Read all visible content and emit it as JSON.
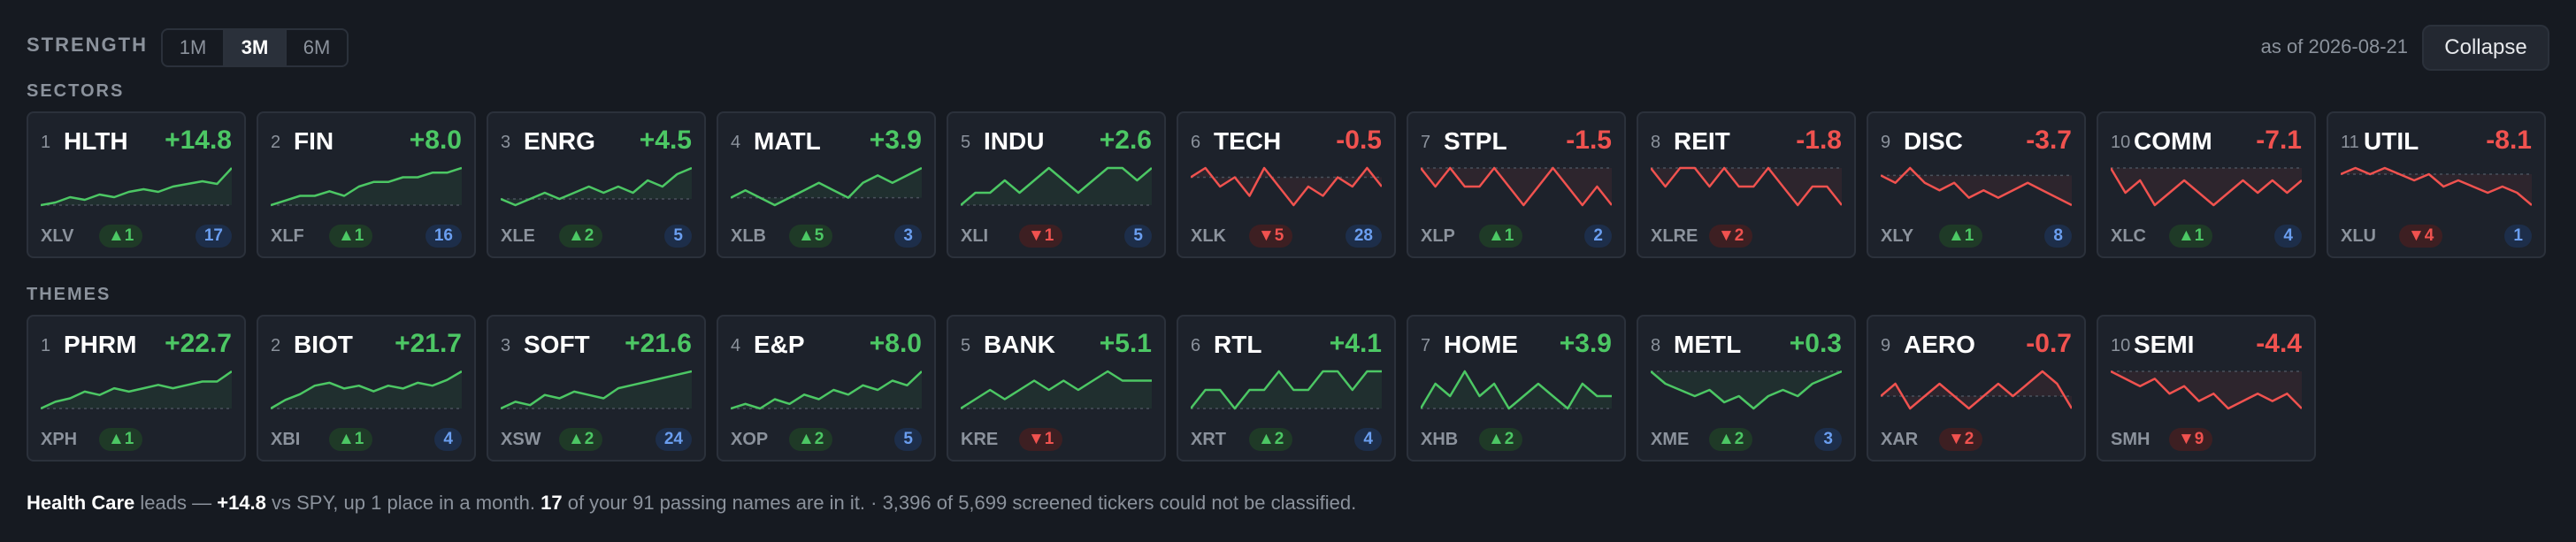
{
  "header": {
    "title": "STRENGTH",
    "tabs": [
      "1M",
      "3M",
      "6M"
    ],
    "active_tab": 1,
    "as_of": "as of 2026-08-21",
    "button": "Collapse"
  },
  "groups": [
    {
      "label": "SECTORS",
      "cards": [
        {
          "rank": "1",
          "ticker": "HLTH",
          "value": "+14.8",
          "etf": "XLV",
          "move": "▲1",
          "count": "17",
          "spark": [
            0,
            1,
            3,
            2,
            4,
            3,
            5,
            6,
            5,
            7,
            8,
            9,
            8,
            14
          ]
        },
        {
          "rank": "2",
          "ticker": "FIN",
          "value": "+8.0",
          "etf": "XLF",
          "move": "▲1",
          "count": "16",
          "spark": [
            0,
            1,
            2,
            2,
            3,
            2,
            4,
            5,
            5,
            6,
            6,
            7,
            7,
            8
          ]
        },
        {
          "rank": "3",
          "ticker": "ENRG",
          "value": "+4.5",
          "etf": "XLE",
          "move": "▲2",
          "count": "5",
          "spark": [
            0,
            -1,
            0,
            1,
            0,
            1,
            2,
            1,
            2,
            1,
            3,
            2,
            4,
            5
          ]
        },
        {
          "rank": "4",
          "ticker": "MATL",
          "value": "+3.9",
          "etf": "XLB",
          "move": "▲5",
          "count": "3",
          "spark": [
            0,
            1,
            0,
            -1,
            0,
            1,
            2,
            1,
            0,
            2,
            3,
            2,
            3,
            4
          ]
        },
        {
          "rank": "5",
          "ticker": "INDU",
          "value": "+2.6",
          "etf": "XLI",
          "move": "▼1",
          "count": "5",
          "spark": [
            0,
            1,
            1,
            2,
            1,
            2,
            3,
            2,
            1,
            2,
            3,
            3,
            2,
            3
          ]
        },
        {
          "rank": "6",
          "ticker": "TECH",
          "value": "-0.5",
          "etf": "XLK",
          "move": "▼5",
          "count": "28",
          "spark": [
            0,
            1,
            -1,
            0,
            -2,
            1,
            -1,
            -3,
            -1,
            -2,
            0,
            -1,
            1,
            -1
          ]
        },
        {
          "rank": "7",
          "ticker": "STPL",
          "value": "-1.5",
          "etf": "XLP",
          "move": "▲1",
          "count": "2",
          "spark": [
            0,
            -1,
            0,
            -1,
            -1,
            0,
            -1,
            -2,
            -1,
            0,
            -1,
            -2,
            -1,
            -2
          ]
        },
        {
          "rank": "8",
          "ticker": "REIT",
          "value": "-1.8",
          "etf": "XLRE",
          "move": "▼2",
          "spark": [
            0,
            -1,
            0,
            0,
            -1,
            0,
            -1,
            -1,
            0,
            -1,
            -2,
            -1,
            -1,
            -2
          ]
        },
        {
          "rank": "9",
          "ticker": "DISC",
          "value": "-3.7",
          "etf": "XLY",
          "move": "▲1",
          "count": "8",
          "spark": [
            0,
            -1,
            1,
            -1,
            -2,
            -1,
            -3,
            -2,
            -3,
            -2,
            -1,
            -2,
            -3,
            -4
          ]
        },
        {
          "rank": "10",
          "ticker": "COMM",
          "value": "-7.1",
          "etf": "XLC",
          "move": "▲1",
          "count": "4",
          "spark": [
            0,
            -2,
            -1,
            -3,
            -2,
            -1,
            -2,
            -3,
            -2,
            -1,
            -2,
            -1,
            -2,
            -1
          ]
        },
        {
          "rank": "11",
          "ticker": "UTIL",
          "value": "-8.1",
          "etf": "XLU",
          "move": "▼4",
          "count": "1",
          "spark": [
            0,
            1,
            0,
            1,
            0,
            -1,
            0,
            -2,
            -1,
            -2,
            -3,
            -2,
            -3,
            -5
          ]
        }
      ]
    },
    {
      "label": "THEMES",
      "cards": [
        {
          "rank": "1",
          "ticker": "PHRM",
          "value": "+22.7",
          "etf": "XPH",
          "move": "▲1",
          "spark": [
            0,
            2,
            3,
            5,
            4,
            6,
            5,
            6,
            7,
            6,
            7,
            8,
            8,
            11
          ]
        },
        {
          "rank": "2",
          "ticker": "BIOT",
          "value": "+21.7",
          "etf": "XBI",
          "move": "▲1",
          "count": "4",
          "spark": [
            0,
            3,
            5,
            8,
            9,
            7,
            8,
            6,
            8,
            7,
            9,
            8,
            10,
            13
          ]
        },
        {
          "rank": "3",
          "ticker": "SOFT",
          "value": "+21.6",
          "etf": "XSW",
          "move": "▲2",
          "count": "24",
          "spark": [
            0,
            2,
            1,
            4,
            3,
            5,
            4,
            3,
            6,
            7,
            8,
            9,
            10,
            11
          ]
        },
        {
          "rank": "4",
          "ticker": "E&P",
          "value": "+8.0",
          "etf": "XOP",
          "move": "▲2",
          "count": "5",
          "spark": [
            0,
            1,
            0,
            2,
            1,
            3,
            2,
            4,
            3,
            5,
            4,
            6,
            5,
            8
          ]
        },
        {
          "rank": "5",
          "ticker": "BANK",
          "value": "+5.1",
          "etf": "KRE",
          "move": "▼1",
          "spark": [
            0,
            1,
            2,
            1,
            2,
            3,
            2,
            3,
            2,
            3,
            4,
            3,
            3,
            3
          ]
        },
        {
          "rank": "6",
          "ticker": "RTL",
          "value": "+4.1",
          "etf": "XRT",
          "move": "▲2",
          "count": "4",
          "spark": [
            0,
            1,
            1,
            0,
            1,
            1,
            2,
            1,
            1,
            2,
            2,
            1,
            2,
            2
          ]
        },
        {
          "rank": "7",
          "ticker": "HOME",
          "value": "+3.9",
          "etf": "XHB",
          "move": "▲2",
          "spark": [
            0,
            2,
            1,
            3,
            1,
            2,
            0,
            1,
            2,
            1,
            0,
            2,
            1,
            1
          ]
        },
        {
          "rank": "8",
          "ticker": "METL",
          "value": "+0.3",
          "etf": "XME",
          "move": "▲2",
          "count": "3",
          "spark": [
            0,
            -2,
            -3,
            -4,
            -3,
            -5,
            -4,
            -6,
            -4,
            -3,
            -4,
            -2,
            -1,
            0
          ]
        },
        {
          "rank": "9",
          "ticker": "AERO",
          "value": "-0.7",
          "etf": "XAR",
          "move": "▼2",
          "spark": [
            0,
            1,
            -1,
            0,
            1,
            0,
            -1,
            0,
            1,
            0,
            1,
            2,
            1,
            -1
          ]
        },
        {
          "rank": "10",
          "ticker": "SEMI",
          "value": "-4.4",
          "etf": "SMH",
          "move": "▼9",
          "spark": [
            0,
            -1,
            -2,
            -1,
            -3,
            -2,
            -4,
            -3,
            -5,
            -4,
            -3,
            -4,
            -3,
            -5
          ]
        }
      ]
    }
  ],
  "footer": [
    {
      "text": "Health Care",
      "bold": true
    },
    {
      "text": " leads — ",
      "bold": false
    },
    {
      "text": "+14.8",
      "bold": true
    },
    {
      "text": " vs SPY, up 1 place in a month. ",
      "bold": false
    },
    {
      "text": "17",
      "bold": true
    },
    {
      "text": " of your 91 passing names are in it. · 3,396 of 5,699 screened tickers could not be classified.",
      "bold": false
    }
  ]
}
